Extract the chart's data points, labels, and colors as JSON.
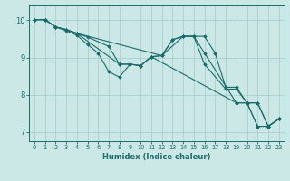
{
  "xlabel": "Humidex (Indice chaleur)",
  "bg_color": "#cce8e6",
  "line_color": "#1a6b6b",
  "grid_color": "#aacfce",
  "xlim": [
    -0.5,
    23.5
  ],
  "ylim": [
    6.75,
    10.4
  ],
  "yticks": [
    7,
    8,
    9,
    10
  ],
  "xticks": [
    0,
    1,
    2,
    3,
    4,
    5,
    6,
    7,
    8,
    9,
    10,
    11,
    12,
    13,
    14,
    15,
    16,
    17,
    18,
    19,
    20,
    21,
    22,
    23
  ],
  "series": [
    {
      "x": [
        0,
        1,
        2,
        3,
        4,
        5,
        6,
        7,
        8,
        9,
        10,
        11,
        12,
        13,
        14,
        15,
        16,
        17,
        18,
        19,
        20,
        21,
        22,
        23
      ],
      "y": [
        10.02,
        10.02,
        9.82,
        9.72,
        9.6,
        9.35,
        9.12,
        8.62,
        8.47,
        8.82,
        8.78,
        9.02,
        9.05,
        9.48,
        9.57,
        9.57,
        9.57,
        9.12,
        8.2,
        8.2,
        7.78,
        7.78,
        7.15,
        7.35
      ]
    },
    {
      "x": [
        0,
        1,
        2,
        3,
        4,
        5,
        7,
        8,
        9,
        10,
        11,
        12,
        14,
        15,
        16,
        18,
        19,
        20,
        21,
        22,
        23
      ],
      "y": [
        10.02,
        10.02,
        9.82,
        9.75,
        9.65,
        9.55,
        9.3,
        8.82,
        8.82,
        8.78,
        9.02,
        9.05,
        9.57,
        9.57,
        8.82,
        8.15,
        8.15,
        7.78,
        7.78,
        7.15,
        7.35
      ]
    },
    {
      "x": [
        0,
        1,
        2,
        3,
        4,
        12,
        13,
        14,
        15,
        16,
        19,
        20,
        21,
        22,
        23
      ],
      "y": [
        10.02,
        10.02,
        9.82,
        9.75,
        9.65,
        9.05,
        9.48,
        9.57,
        9.57,
        9.12,
        7.78,
        7.78,
        7.15,
        7.15,
        7.35
      ]
    },
    {
      "x": [
        0,
        1,
        2,
        3,
        4,
        8,
        9,
        10,
        11,
        19,
        20,
        21,
        22,
        23
      ],
      "y": [
        10.02,
        10.02,
        9.82,
        9.75,
        9.65,
        8.82,
        8.82,
        8.78,
        9.02,
        7.78,
        7.78,
        7.15,
        7.15,
        7.35
      ]
    }
  ]
}
